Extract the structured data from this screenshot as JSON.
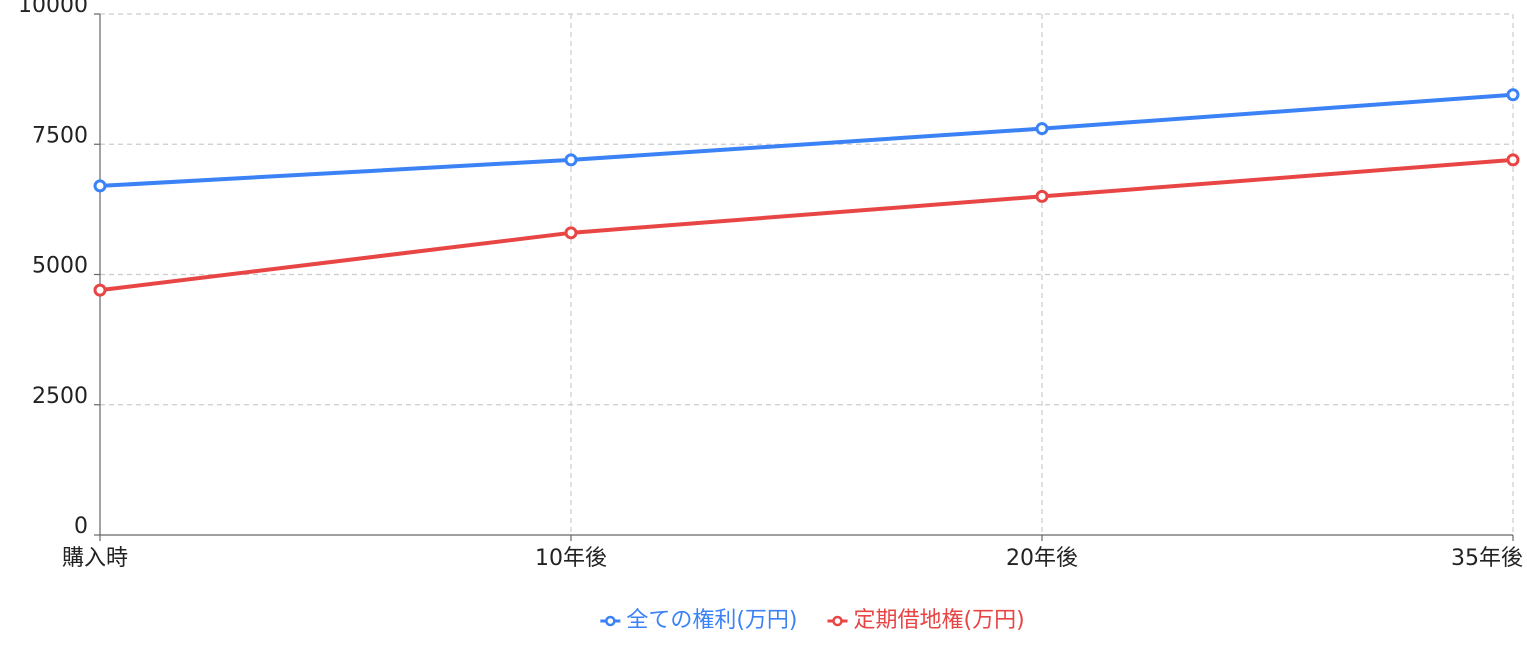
{
  "chart_data": {
    "type": "line",
    "categories": [
      "購入時",
      "10年後",
      "20年後",
      "35年後"
    ],
    "series": [
      {
        "name": "全ての権利(万円)",
        "color": "#3b82f6",
        "values": [
          6700,
          7200,
          7800,
          8450
        ]
      },
      {
        "name": "定期借地権(万円)",
        "color": "#e84545",
        "values": [
          4700,
          5800,
          6500,
          7200
        ]
      }
    ],
    "ylim": [
      0,
      10000
    ],
    "yticks": [
      0,
      2500,
      5000,
      7500,
      10000
    ],
    "grid": true,
    "legend": "bottom"
  }
}
